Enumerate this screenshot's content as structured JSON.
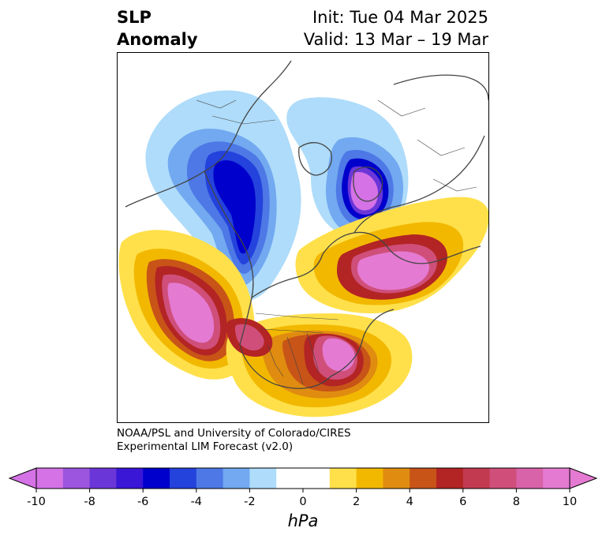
{
  "title": {
    "left_line1": "SLP",
    "left_line2": "Anomaly",
    "init": "Init: Tue 04 Mar 2025",
    "valid": "Valid: 13 Mar – 19 Mar"
  },
  "credit": {
    "line1": "NOAA/PSL and University of Colorado/CIRES",
    "line2": "Experimental LIM Forecast (v2.0)"
  },
  "colorbar": {
    "unit": "hPa",
    "ticks": [
      "-10",
      "-8",
      "-6",
      "-4",
      "-2",
      "0",
      "2",
      "4",
      "6",
      "8",
      "10"
    ],
    "colors": [
      "#d472e6",
      "#9c55de",
      "#6b36d8",
      "#3a16d6",
      "#0000cc",
      "#2442dc",
      "#4d78e6",
      "#72a9f0",
      "#aedcfa",
      "#ffffff",
      "#ffffff",
      "#ffe04a",
      "#f2b800",
      "#e08c10",
      "#c85418",
      "#b32424",
      "#c23a50",
      "#cf4f7a",
      "#d863a8",
      "#e57ad2"
    ],
    "low_end_color": "#d472e6",
    "high_end_color": "#e57ad2"
  }
}
